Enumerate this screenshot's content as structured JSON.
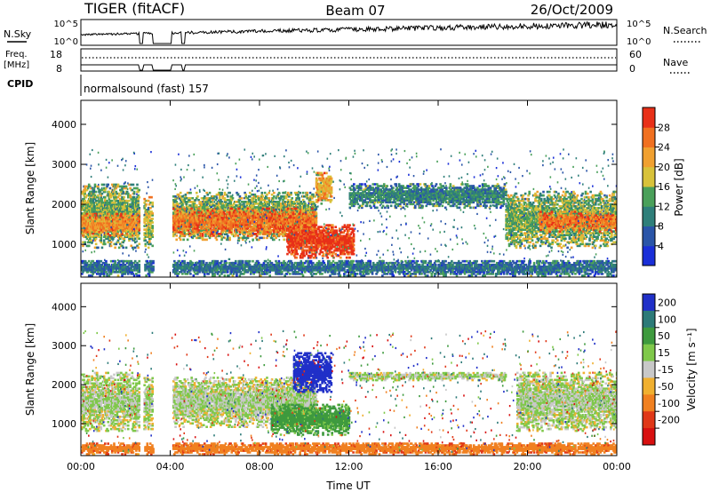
{
  "header": {
    "station": "TIGER (fitACF)",
    "beam": "Beam 07",
    "date": "26/Oct/2009"
  },
  "noise_panel": {
    "left_label": "N.Sky",
    "right_label": "N.Search",
    "tick_top": "10^5",
    "tick_bottom": "10^0"
  },
  "freq_panel": {
    "left_label_line1": "Freq.",
    "left_label_line2": "[MHz]",
    "left_tick_top": "18",
    "left_tick_bottom": "8",
    "right_label": "Nave",
    "right_tick_top": "60",
    "right_tick_bottom": "0"
  },
  "cpid_panel": {
    "label": "CPID",
    "value": "normalsound (fast) 157"
  },
  "axes": {
    "xlabel": "Time UT",
    "ylabel": "Slant Range [km]",
    "xticks": [
      "00:00",
      "04:00",
      "08:00",
      "12:00",
      "16:00",
      "20:00",
      "00:00"
    ],
    "yticks": [
      "1000",
      "2000",
      "3000",
      "4000"
    ],
    "xlim_hours": [
      0,
      24
    ],
    "ylim_km": [
      180,
      4600
    ]
  },
  "power_colorbar": {
    "label": "Power [dB]",
    "ticks": [
      "4",
      "8",
      "12",
      "16",
      "20",
      "24",
      "28"
    ],
    "colors": [
      "#1a2fd8",
      "#2a55a8",
      "#2f7f7a",
      "#4aa05a",
      "#d8c23a",
      "#f0a030",
      "#f07020",
      "#e83018"
    ]
  },
  "velocity_colorbar": {
    "label": "Velocity [m s⁻¹]",
    "ticks": [
      "200",
      "100",
      "50",
      "15",
      "-15",
      "-50",
      "-100",
      "-200"
    ],
    "colors": [
      "#2030c8",
      "#2c7a78",
      "#3e9a3e",
      "#7fc84a",
      "#c8c8c8",
      "#f0b030",
      "#f08020",
      "#e03818",
      "#d81010"
    ]
  },
  "chart_data": [
    {
      "type": "heatmap",
      "title": "Power",
      "xlabel": "Time UT",
      "ylabel": "Slant Range [km]",
      "xlim": [
        0,
        24
      ],
      "ylim": [
        180,
        4600
      ],
      "colorbar_label": "Power [dB]",
      "colorbar_range": [
        0,
        30
      ],
      "regions": [
        {
          "t0": 0.0,
          "t1": 2.6,
          "r0": 900,
          "r1": 2500,
          "value": 14
        },
        {
          "t0": 0.0,
          "t1": 2.6,
          "r0": 1200,
          "r1": 1750,
          "value": 22
        },
        {
          "t0": 2.8,
          "t1": 3.2,
          "r0": 900,
          "r1": 2200,
          "value": 16
        },
        {
          "t0": 4.1,
          "t1": 10.5,
          "r0": 1100,
          "r1": 2300,
          "value": 14
        },
        {
          "t0": 4.1,
          "t1": 10.5,
          "r0": 1200,
          "r1": 1900,
          "value": 24
        },
        {
          "t0": 9.2,
          "t1": 12.2,
          "r0": 650,
          "r1": 1500,
          "value": 28
        },
        {
          "t0": 10.5,
          "t1": 11.2,
          "r0": 2000,
          "r1": 2800,
          "value": 20
        },
        {
          "t0": 12.0,
          "t1": 19.0,
          "r0": 1900,
          "r1": 2500,
          "value": 10
        },
        {
          "t0": 19.0,
          "t1": 24.0,
          "r0": 900,
          "r1": 2300,
          "value": 14
        },
        {
          "t0": 20.5,
          "t1": 24.0,
          "r0": 1300,
          "r1": 1800,
          "value": 24
        },
        {
          "t0": 0.0,
          "t1": 24.0,
          "r0": 200,
          "r1": 600,
          "value": 8
        }
      ]
    },
    {
      "type": "heatmap",
      "title": "Velocity",
      "xlabel": "Time UT",
      "ylabel": "Slant Range [km]",
      "xlim": [
        0,
        24
      ],
      "ylim": [
        180,
        4600
      ],
      "colorbar_label": "Velocity [m s⁻¹]",
      "colorbar_range": [
        -200,
        200
      ],
      "regions": [
        {
          "t0": 0.0,
          "t1": 2.6,
          "r0": 800,
          "r1": 2300,
          "value": 0
        },
        {
          "t0": 2.8,
          "t1": 3.2,
          "r0": 800,
          "r1": 2200,
          "value": 0
        },
        {
          "t0": 4.1,
          "t1": 10.5,
          "r0": 900,
          "r1": 2200,
          "value": 0
        },
        {
          "t0": 9.5,
          "t1": 11.2,
          "r0": 1800,
          "r1": 2800,
          "value": 180
        },
        {
          "t0": 8.5,
          "t1": 12.0,
          "r0": 700,
          "r1": 1500,
          "value": 45
        },
        {
          "t0": 12.0,
          "t1": 19.0,
          "r0": 2100,
          "r1": 2300,
          "value": 0
        },
        {
          "t0": 19.5,
          "t1": 24.0,
          "r0": 800,
          "r1": 2300,
          "value": 0
        },
        {
          "t0": 0.0,
          "t1": 24.0,
          "r0": 200,
          "r1": 500,
          "value": -60
        }
      ]
    }
  ]
}
